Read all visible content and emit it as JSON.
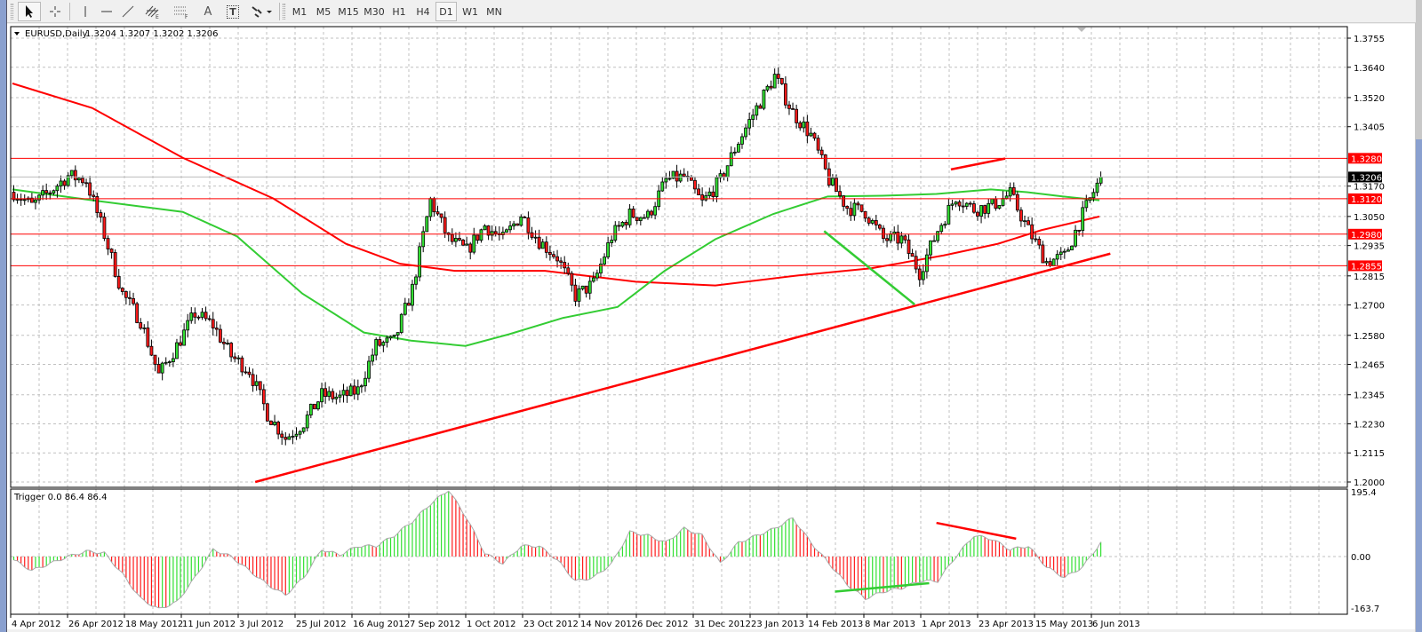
{
  "toolbar": {
    "tools": [
      {
        "name": "cursor",
        "icon": "cursor-arrow-icon"
      },
      {
        "name": "crosshair",
        "icon": "crosshair-icon"
      },
      {
        "name": "vertical-line",
        "icon": "vertical-line-icon"
      },
      {
        "name": "horizontal-line",
        "icon": "horizontal-line-icon"
      },
      {
        "name": "trendline",
        "icon": "trendline-icon"
      },
      {
        "name": "equidistant-channel",
        "icon": "channel-icon",
        "label": "E"
      },
      {
        "name": "fibonacci",
        "icon": "fibonacci-icon",
        "label": "F"
      },
      {
        "name": "text",
        "icon": "text-icon",
        "label": "A"
      },
      {
        "name": "text-label",
        "icon": "text-label-icon",
        "label": "T"
      },
      {
        "name": "arrows",
        "icon": "arrows-dropdown-icon"
      }
    ],
    "timeframes": [
      "M1",
      "M5",
      "M15",
      "M30",
      "H1",
      "H4",
      "D1",
      "W1",
      "MN"
    ],
    "active_timeframe": "D1"
  },
  "chart": {
    "symbol_label": "EURUSD,Daily",
    "ohlc": "1.3204 1.3207 1.3202 1.3206",
    "indicator_label": "Trigger 0.0 86.4 86.4",
    "current_price": "1.3206",
    "price_ticks": [
      "1.3755",
      "1.3640",
      "1.3520",
      "1.3405",
      "1.3170",
      "1.3050",
      "1.2935",
      "1.2815",
      "1.2700",
      "1.2580",
      "1.2465",
      "1.2345",
      "1.2230",
      "1.2115",
      "1.2000"
    ],
    "level_labels": [
      "1.3280",
      "1.3120",
      "1.2980",
      "1.2855"
    ],
    "indicator_ticks": [
      "195.4",
      "0.00",
      "-163.7"
    ],
    "date_labels": [
      "4 Apr 2012",
      "26 Apr 2012",
      "18 May 2012",
      "11 Jun 2012",
      "3 Jul 2012",
      "25 Jul 2012",
      "16 Aug 2012",
      "7 Sep 2012",
      "1 Oct 2012",
      "23 Oct 2012",
      "14 Nov 2012",
      "6 Dec 2012",
      "31 Dec 2012",
      "23 Jan 2013",
      "14 Feb 2013",
      "8 Mar 2013",
      "1 Apr 2013",
      "23 Apr 2013",
      "15 May 2013",
      "6 Jun 2013"
    ]
  },
  "colors": {
    "up": "#32e032",
    "down": "#ff1a1a",
    "level": "#ff0000",
    "ma_slow": "#ff0000",
    "ma_fast": "#33cc33",
    "grid": "#c0c0c0",
    "current": "#000000"
  },
  "chart_data": {
    "type": "candlestick",
    "symbol": "EURUSD",
    "timeframe": "Daily",
    "ylim": [
      1.2,
      1.3755
    ],
    "bars_per_sample": 5,
    "close_samples": [
      1.3146,
      1.3093,
      1.315,
      1.3211,
      1.3193,
      1.2978,
      1.2745,
      1.2638,
      1.2423,
      1.2538,
      1.2667,
      1.262,
      1.2498,
      1.2441,
      1.2269,
      1.2173,
      1.2234,
      1.2344,
      1.2334,
      1.2362,
      1.2541,
      1.2556,
      1.2763,
      1.3114,
      1.296,
      1.2914,
      1.3014,
      1.296,
      1.3057,
      1.2953,
      1.2889,
      1.2735,
      1.2785,
      1.2971,
      1.3057,
      1.305,
      1.3193,
      1.3207,
      1.3103,
      1.3193,
      1.3347,
      1.3479,
      1.3605,
      1.3461,
      1.3372,
      1.3193,
      1.3086,
      1.3068,
      1.296,
      1.296,
      1.2828,
      1.2996,
      1.3129,
      1.3078,
      1.3093,
      1.3139,
      1.2996,
      1.2871,
      1.2892,
      1.3057,
      1.3206
    ],
    "ma_slow": [
      [
        0,
        1.3576
      ],
      [
        22,
        1.3479
      ],
      [
        47,
        1.3282
      ],
      [
        72,
        1.3121
      ],
      [
        92,
        1.2942
      ],
      [
        107,
        1.2863
      ],
      [
        122,
        1.2835
      ],
      [
        147,
        1.2835
      ],
      [
        172,
        1.2792
      ],
      [
        194,
        1.2777
      ],
      [
        217,
        1.2817
      ],
      [
        237,
        1.2845
      ],
      [
        257,
        1.2896
      ],
      [
        272,
        1.2942
      ],
      [
        284,
        1.2996
      ],
      [
        300,
        1.305
      ]
    ],
    "ma_fast": [
      [
        0,
        1.3157
      ],
      [
        22,
        1.3114
      ],
      [
        47,
        1.3068
      ],
      [
        62,
        1.2971
      ],
      [
        80,
        1.2745
      ],
      [
        97,
        1.2591
      ],
      [
        110,
        1.2559
      ],
      [
        125,
        1.2538
      ],
      [
        137,
        1.2584
      ],
      [
        152,
        1.2649
      ],
      [
        167,
        1.2692
      ],
      [
        180,
        1.2835
      ],
      [
        194,
        1.296
      ],
      [
        210,
        1.306
      ],
      [
        225,
        1.3129
      ],
      [
        240,
        1.3132
      ],
      [
        255,
        1.3139
      ],
      [
        270,
        1.3157
      ],
      [
        280,
        1.3146
      ],
      [
        290,
        1.3129
      ],
      [
        300,
        1.3114
      ]
    ],
    "horizontal_levels": [
      1.328,
      1.312,
      1.298,
      1.2855
    ],
    "trendlines": [
      {
        "color": "red",
        "from": [
          67,
          1.2
        ],
        "to": [
          303,
          1.2903
        ]
      },
      {
        "color": "red",
        "from": [
          259,
          1.3236
        ],
        "to": [
          274,
          1.3279
        ]
      },
      {
        "color": "green",
        "from": [
          224,
          1.2992
        ],
        "to": [
          249,
          1.2702
        ]
      }
    ],
    "indicator": {
      "name": "Trigger",
      "ylim": [
        -163.7,
        195.4
      ],
      "samples": [
        -10,
        -40,
        -20,
        0,
        15,
        10,
        -50,
        -120,
        -150,
        -130,
        -60,
        20,
        0,
        -40,
        -80,
        -110,
        -60,
        20,
        5,
        30,
        30,
        60,
        100,
        150,
        190,
        110,
        10,
        -20,
        30,
        30,
        -10,
        -70,
        -60,
        -20,
        70,
        60,
        40,
        80,
        60,
        -20,
        40,
        60,
        80,
        110,
        40,
        -20,
        -80,
        -120,
        -100,
        -90,
        -70,
        -70,
        0,
        60,
        50,
        20,
        30,
        -30,
        -60,
        -30,
        40,
        86.4
      ],
      "trendlines": [
        {
          "color": "red",
          "from": [
            255,
            96
          ],
          "to": [
            277,
            51
          ]
        },
        {
          "color": "green",
          "from": [
            227,
            -100
          ],
          "to": [
            253,
            -76
          ]
        }
      ]
    }
  }
}
